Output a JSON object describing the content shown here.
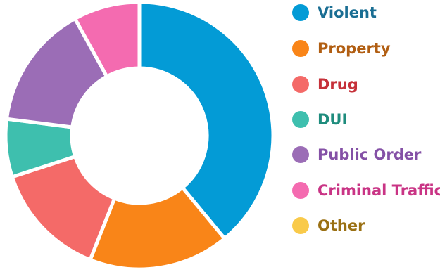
{
  "chart_data": {
    "type": "pie",
    "donut": true,
    "title": "",
    "legend_position": "right",
    "categories": [
      "Violent",
      "Property",
      "Drug",
      "DUI",
      "Public Order",
      "Criminal Traffic",
      "Other"
    ],
    "values": [
      39,
      17,
      14,
      7,
      15,
      8,
      0
    ],
    "colors": [
      "#039bd6",
      "#f98518",
      "#f46a68",
      "#3ebfae",
      "#9b6db6",
      "#f46bb0",
      "#f9ca4a"
    ],
    "label_colors": [
      "#1a6e93",
      "#b15e12",
      "#c6313a",
      "#1e8c7d",
      "#8450a6",
      "#c93485",
      "#9a7013"
    ]
  }
}
